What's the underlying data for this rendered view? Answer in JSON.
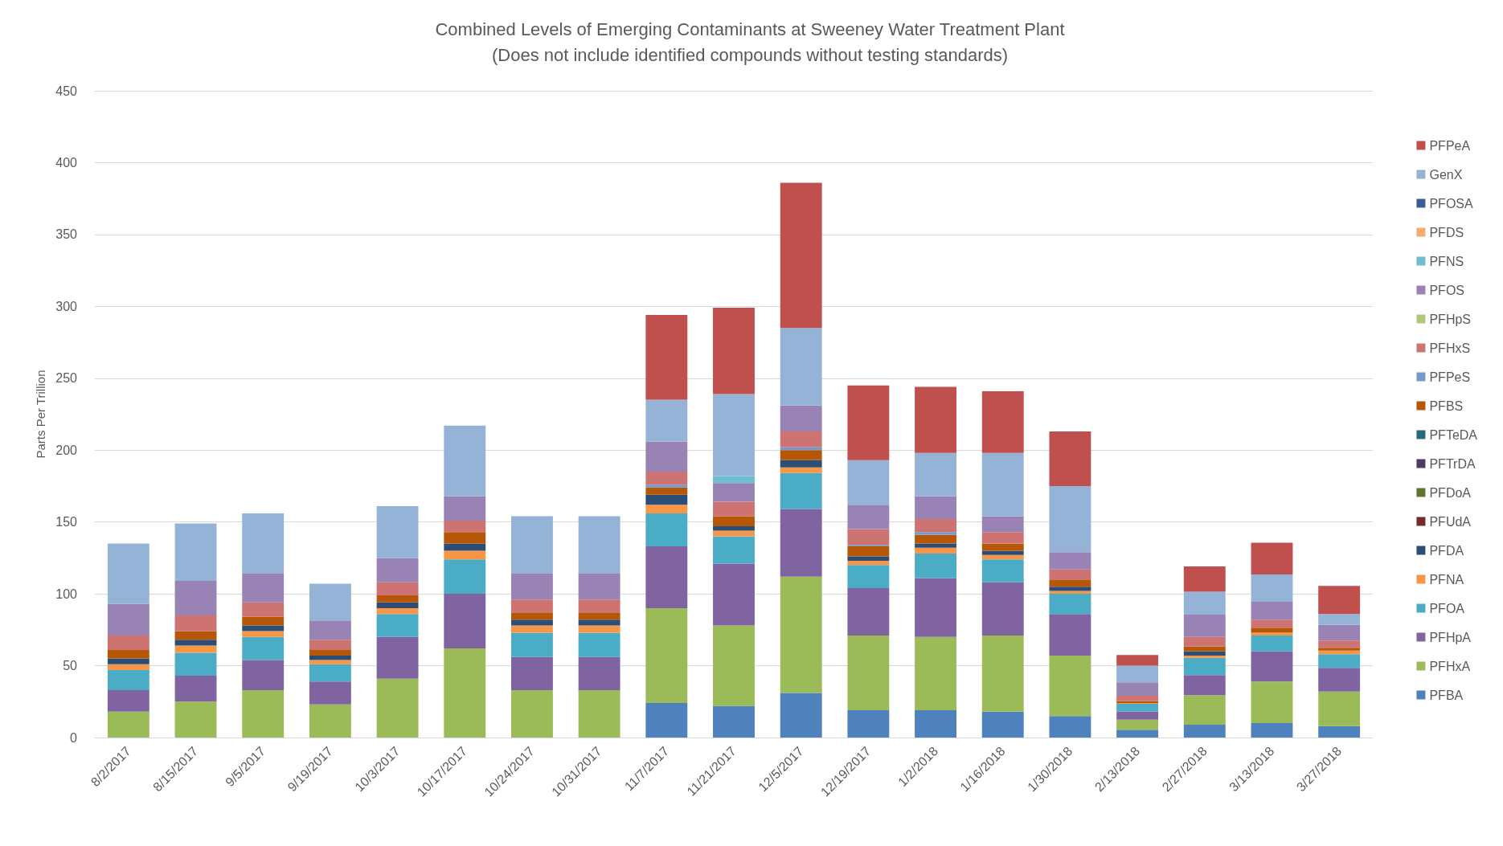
{
  "chart_data": {
    "type": "bar",
    "stacked": true,
    "title": "Combined Levels of Emerging Contaminants at Sweeney Water Treatment Plant",
    "subtitle": "(Does not include identified compounds without testing standards)",
    "ylabel": "Parts Per Trillion",
    "categories": [
      "8/2/2017",
      "8/15/2017",
      "9/5/2017",
      "9/19/2017",
      "10/3/2017",
      "10/17/2017",
      "10/24/2017",
      "10/31/2017",
      "11/7/2017",
      "11/21/2017",
      "12/5/2017",
      "12/19/2017",
      "1/2/2018",
      "1/16/2018",
      "1/30/2018",
      "2/13/2018",
      "2/27/2018",
      "3/13/2018",
      "3/27/2018"
    ],
    "ylim": [
      0,
      450
    ],
    "yticks": [
      0,
      50,
      100,
      150,
      200,
      250,
      300,
      350,
      400,
      450
    ],
    "grid": "y",
    "legend": "right",
    "series": [
      {
        "name": "PFBA",
        "color": "#4f81bd",
        "values": [
          null,
          null,
          null,
          null,
          null,
          null,
          null,
          null,
          24,
          22,
          31,
          19,
          19,
          18,
          15,
          5.5,
          9,
          10,
          8
        ]
      },
      {
        "name": "PFHxA",
        "color": "#9bbb59",
        "values": [
          18,
          25,
          33,
          23,
          41,
          62,
          33,
          33,
          66,
          56,
          81,
          52,
          51,
          53,
          42,
          7,
          20.5,
          29,
          24
        ]
      },
      {
        "name": "PFHpA",
        "color": "#8064a2",
        "values": [
          15,
          18,
          21,
          16,
          29,
          38,
          23,
          23,
          43,
          43,
          47,
          33,
          41,
          37,
          29,
          5.5,
          14,
          21,
          16.5
        ]
      },
      {
        "name": "PFOA",
        "color": "#4bacc6",
        "values": [
          14,
          16,
          16,
          12,
          16,
          24,
          17,
          17,
          23,
          19,
          25,
          16,
          17,
          16,
          14,
          5.5,
          12,
          11,
          9.5
        ]
      },
      {
        "name": "PFNA",
        "color": "#f79646",
        "values": [
          4,
          5,
          4,
          3,
          4,
          6,
          5,
          5,
          6,
          4,
          4,
          3,
          4,
          3,
          2,
          0.5,
          1.5,
          2,
          2.5
        ]
      },
      {
        "name": "PFDA",
        "color": "#2c4d75",
        "values": [
          4,
          4,
          4,
          3,
          4,
          5,
          4,
          4,
          7,
          3,
          5,
          3,
          3,
          3,
          3,
          null,
          3,
          null,
          null
        ]
      },
      {
        "name": "PFUdA",
        "color": "#772c2a",
        "values": [
          null,
          null,
          null,
          null,
          null,
          null,
          null,
          null,
          null,
          null,
          null,
          null,
          null,
          null,
          null,
          null,
          null,
          null,
          null
        ]
      },
      {
        "name": "PFDoA",
        "color": "#5f7530",
        "values": [
          null,
          null,
          null,
          null,
          null,
          null,
          null,
          null,
          null,
          null,
          null,
          null,
          null,
          null,
          null,
          null,
          null,
          null,
          null
        ]
      },
      {
        "name": "PFTrDA",
        "color": "#4d3b62",
        "values": [
          null,
          null,
          null,
          null,
          null,
          null,
          null,
          null,
          null,
          null,
          null,
          null,
          null,
          null,
          null,
          null,
          null,
          null,
          null
        ]
      },
      {
        "name": "PFTeDA",
        "color": "#276a7c",
        "values": [
          null,
          null,
          null,
          null,
          null,
          null,
          null,
          null,
          null,
          null,
          null,
          null,
          null,
          null,
          null,
          null,
          null,
          null,
          null
        ]
      },
      {
        "name": "PFBS",
        "color": "#b65708",
        "values": [
          6,
          6,
          6,
          4,
          5,
          8,
          5,
          5,
          5,
          7,
          7,
          7,
          6,
          5,
          5,
          1.5,
          3.5,
          3.5,
          2
        ]
      },
      {
        "name": "PFPeS",
        "color": "#729aca",
        "values": [
          null,
          null,
          null,
          null,
          null,
          null,
          null,
          null,
          2,
          null,
          2,
          1,
          2,
          null,
          null,
          null,
          null,
          null,
          null
        ]
      },
      {
        "name": "PFHxS",
        "color": "#cd7371",
        "values": [
          10,
          11,
          10,
          7,
          9,
          8,
          9,
          9,
          9,
          10,
          11,
          11,
          9,
          8,
          7,
          3.5,
          6.5,
          5.5,
          5
        ]
      },
      {
        "name": "PFHpS",
        "color": "#afc97a",
        "values": [
          null,
          null,
          null,
          null,
          null,
          null,
          null,
          null,
          null,
          null,
          null,
          null,
          null,
          null,
          null,
          null,
          null,
          null,
          null
        ]
      },
      {
        "name": "PFOS",
        "color": "#9983b5",
        "values": [
          22,
          24,
          20,
          13,
          17,
          17,
          18,
          18,
          21,
          13,
          18,
          17,
          16,
          11,
          12,
          9.5,
          15.5,
          12.5,
          11
        ]
      },
      {
        "name": "PFNS",
        "color": "#6fbdd1",
        "values": [
          null,
          null,
          null,
          null,
          null,
          null,
          null,
          null,
          null,
          5,
          null,
          null,
          null,
          null,
          null,
          null,
          null,
          null,
          null
        ]
      },
      {
        "name": "PFDS",
        "color": "#f9ab6b",
        "values": [
          null,
          null,
          null,
          null,
          null,
          null,
          null,
          null,
          null,
          null,
          null,
          null,
          null,
          null,
          null,
          null,
          null,
          null,
          null
        ]
      },
      {
        "name": "PFOSA",
        "color": "#3a5f94",
        "values": [
          null,
          null,
          null,
          null,
          null,
          null,
          null,
          null,
          null,
          null,
          null,
          null,
          null,
          null,
          null,
          null,
          null,
          null,
          null
        ]
      },
      {
        "name": "GenX",
        "color": "#95b3d7",
        "values": [
          42,
          40,
          42,
          26,
          36,
          49,
          40,
          40,
          29,
          57,
          54,
          31,
          30,
          44,
          46,
          11.5,
          16,
          19,
          7.5
        ]
      },
      {
        "name": "PFPeA",
        "color": "#c0504d",
        "values": [
          null,
          null,
          null,
          null,
          null,
          null,
          null,
          null,
          59,
          60,
          101,
          52,
          46,
          43,
          38,
          7.5,
          17.5,
          22,
          19.5
        ]
      }
    ]
  }
}
